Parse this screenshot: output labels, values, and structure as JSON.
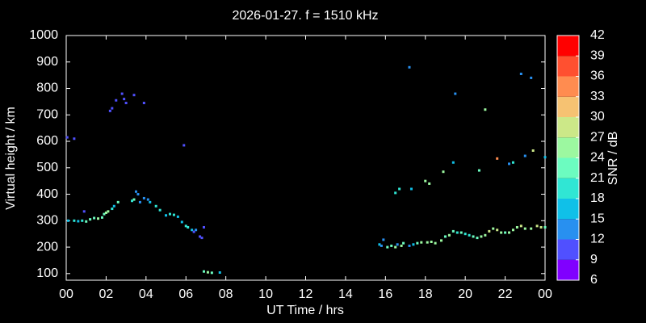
{
  "chart_data": {
    "type": "scatter",
    "title": "2026-01-27. f = 1510 kHz",
    "xlabel": "UT Time / hrs",
    "ylabel": "Virtual height / km",
    "xlim": [
      0,
      24
    ],
    "xticks": [
      {
        "value": 0,
        "label": "00"
      },
      {
        "value": 2,
        "label": "02"
      },
      {
        "value": 4,
        "label": "04"
      },
      {
        "value": 6,
        "label": "06"
      },
      {
        "value": 8,
        "label": "08"
      },
      10,
      12,
      14,
      16,
      18,
      20,
      22,
      {
        "value": 24,
        "label": "00"
      }
    ],
    "ylim": [
      75,
      1000
    ],
    "yticks": [
      100,
      200,
      300,
      400,
      500,
      600,
      700,
      800,
      900,
      1000
    ],
    "x": [
      0.05,
      0.4,
      0.1,
      0.4,
      0.6,
      0.8,
      0.9,
      1.0,
      1.2,
      1.4,
      1.6,
      1.8,
      1.9,
      2.0,
      2.1,
      2.3,
      2.4,
      2.6,
      2.2,
      2.3,
      2.5,
      2.8,
      3.0,
      2.9,
      3.4,
      3.9,
      3.3,
      3.4,
      3.5,
      3.6,
      3.7,
      3.9,
      4.1,
      4.2,
      4.5,
      4.7,
      5.0,
      5.2,
      5.4,
      5.6,
      5.8,
      6.0,
      6.1,
      6.3,
      6.4,
      6.5,
      6.7,
      6.8,
      6.9,
      5.9,
      6.9,
      7.1,
      7.3,
      7.7,
      15.7,
      15.8,
      15.9,
      16.1,
      16.3,
      16.5,
      16.6,
      16.8,
      16.9,
      17.2,
      17.4,
      17.6,
      17.8,
      18.1,
      18.3,
      18.5,
      18.8,
      19.0,
      19.2,
      19.4,
      19.6,
      19.8,
      20.0,
      20.2,
      20.4,
      20.6,
      20.8,
      21.0,
      21.2,
      21.4,
      21.6,
      21.8,
      22.0,
      22.2,
      22.4,
      22.6,
      22.8,
      23.0,
      23.3,
      23.6,
      23.8,
      24.0,
      16.5,
      16.7,
      17.2,
      17.3,
      18.0,
      18.2,
      18.9,
      19.4,
      19.5,
      20.7,
      21.0,
      21.6,
      22.2,
      22.4,
      22.8,
      23.0,
      23.3,
      23.4,
      24.0
    ],
    "values": [
      615,
      610,
      300,
      300,
      298,
      300,
      335,
      297,
      305,
      310,
      308,
      312,
      325,
      330,
      335,
      345,
      355,
      370,
      715,
      725,
      755,
      780,
      745,
      760,
      775,
      745,
      375,
      380,
      410,
      400,
      370,
      385,
      380,
      370,
      355,
      340,
      320,
      325,
      322,
      315,
      295,
      280,
      275,
      265,
      258,
      265,
      240,
      235,
      275,
      585,
      108,
      105,
      103,
      104,
      210,
      205,
      228,
      200,
      205,
      200,
      210,
      205,
      215,
      205,
      210,
      215,
      218,
      218,
      220,
      215,
      225,
      240,
      245,
      260,
      255,
      255,
      250,
      245,
      240,
      235,
      240,
      245,
      260,
      270,
      265,
      255,
      255,
      255,
      265,
      275,
      280,
      270,
      270,
      280,
      275,
      275,
      405,
      420,
      880,
      420,
      450,
      440,
      485,
      520,
      780,
      490,
      720,
      535,
      515,
      520,
      855,
      545,
      840,
      565,
      540
    ],
    "snr": [
      10,
      10,
      16,
      19,
      16,
      19,
      10,
      22,
      22,
      22,
      25,
      22,
      22,
      25,
      25,
      19,
      16,
      22,
      10,
      10,
      10,
      10,
      10,
      10,
      10,
      10,
      19,
      22,
      13,
      13,
      13,
      13,
      13,
      16,
      19,
      19,
      16,
      19,
      19,
      16,
      16,
      19,
      19,
      16,
      10,
      13,
      10,
      10,
      10,
      10,
      22,
      25,
      22,
      16,
      16,
      13,
      13,
      22,
      22,
      25,
      13,
      25,
      22,
      13,
      16,
      22,
      25,
      25,
      25,
      25,
      25,
      22,
      25,
      22,
      19,
      22,
      19,
      19,
      22,
      22,
      25,
      25,
      28,
      25,
      28,
      25,
      22,
      25,
      25,
      25,
      28,
      25,
      25,
      28,
      28,
      22,
      19,
      19,
      13,
      16,
      25,
      25,
      25,
      16,
      13,
      22,
      25,
      34,
      13,
      19,
      13,
      13,
      13,
      28,
      16
    ],
    "colorbar": {
      "label": "SNR / dB",
      "ticks": [
        6,
        9,
        12,
        15,
        18,
        21,
        24,
        27,
        30,
        33,
        36,
        39,
        42
      ],
      "colors": [
        "#8000ff",
        "#5050ff",
        "#2890f0",
        "#10c0e8",
        "#30e6d4",
        "#6cfcc0",
        "#9cf8a0",
        "#cce888",
        "#f6c272",
        "#ff8c50",
        "#ff5030",
        "#ff0000"
      ]
    }
  }
}
